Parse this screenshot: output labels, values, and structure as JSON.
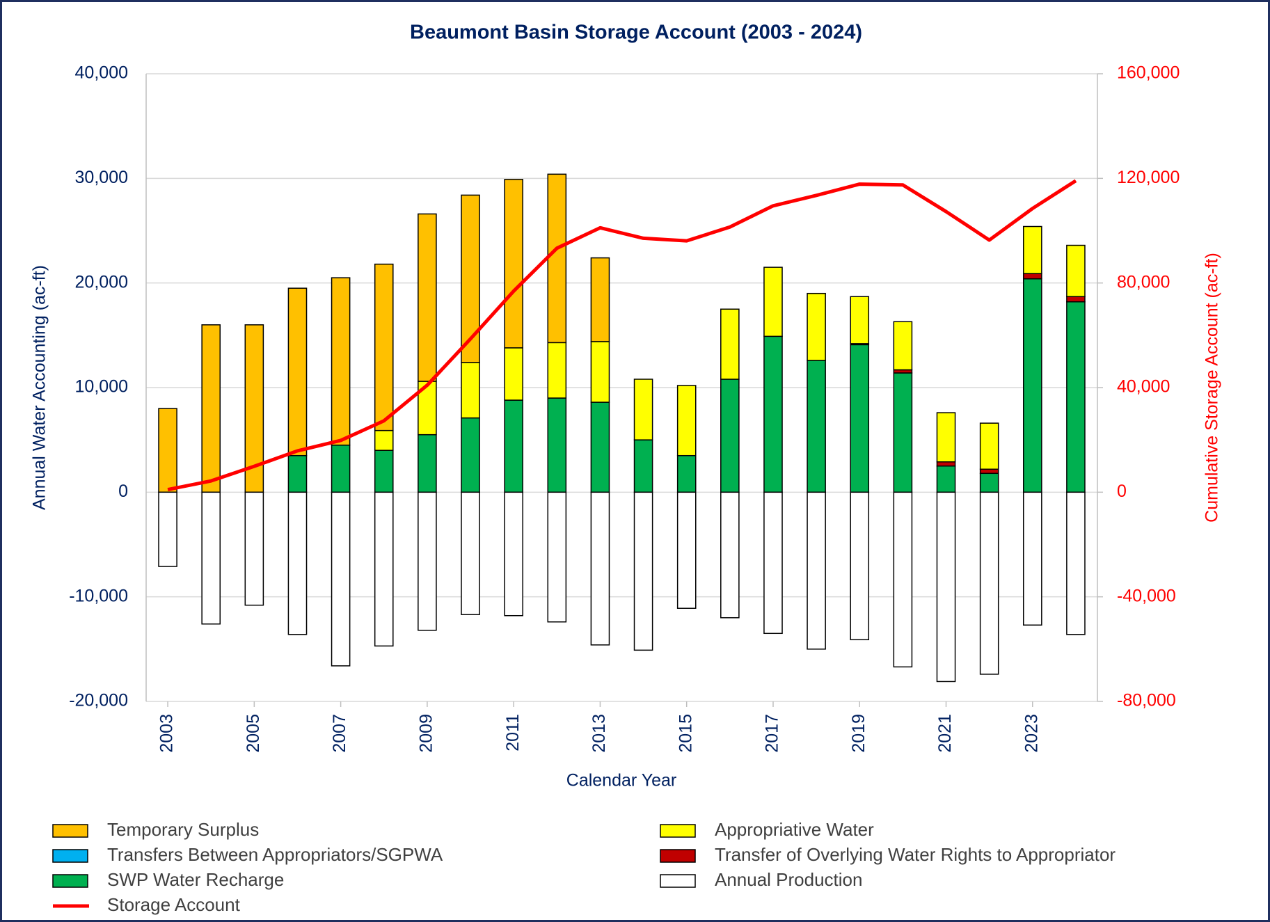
{
  "chart_data": {
    "type": "bar",
    "title": "Beaumont Basin Storage Account (2003  - 2024)",
    "x_label": "Calendar Year",
    "y_label": "Annual Water Accounting (ac-ft)",
    "y2_label": "Cumulative Storage Account (ac-ft)",
    "x": [
      2003,
      2004,
      2005,
      2006,
      2007,
      2008,
      2009,
      2010,
      2011,
      2012,
      2013,
      2014,
      2015,
      2016,
      2017,
      2018,
      2019,
      2020,
      2021,
      2022,
      2023,
      2024
    ],
    "xlim": [
      2002.5,
      2024.5
    ],
    "xticks": [
      2003,
      2005,
      2007,
      2009,
      2011,
      2013,
      2015,
      2017,
      2019,
      2021,
      2023
    ],
    "ylim": [
      -20000,
      40000
    ],
    "yticks": [
      {
        "value": -20000,
        "label": "-20,000"
      },
      {
        "value": -10000,
        "label": "-10,000"
      },
      0,
      {
        "value": 10000,
        "label": "10,000"
      },
      {
        "value": 20000,
        "label": "20,000"
      },
      {
        "value": 30000,
        "label": "30,000"
      },
      {
        "value": 40000,
        "label": "40,000"
      }
    ],
    "y2lim": [
      -80000,
      160000
    ],
    "y2ticks": [
      {
        "value": -80000,
        "label": "-80,000"
      },
      {
        "value": -40000,
        "label": "-40,000"
      },
      0,
      {
        "value": 40000,
        "label": "40,000"
      },
      {
        "value": 80000,
        "label": "80,000"
      },
      {
        "value": 120000,
        "label": "120,000"
      },
      {
        "value": 160000,
        "label": "160,000"
      }
    ],
    "grid": true,
    "stacked": true,
    "series": [
      {
        "name": "Temporary Surplus",
        "color": "#ffc000",
        "values": [
          8000,
          16000,
          16000,
          16000,
          16000,
          15900,
          16000,
          16000,
          16100,
          16100,
          8000,
          0,
          0,
          0,
          0,
          0,
          0,
          0,
          0,
          0,
          0,
          0
        ]
      },
      {
        "name": "Appropriative Water",
        "color": "#ffff00",
        "values": [
          0,
          0,
          0,
          0,
          0,
          1900,
          5100,
          5300,
          5000,
          5300,
          5800,
          5800,
          6700,
          6700,
          6600,
          6400,
          4500,
          4600,
          4700,
          4400,
          4500,
          4900
        ]
      },
      {
        "name": "Transfers Between Appropriators/SGPWA",
        "color": "#00b0f0",
        "values": [
          0,
          0,
          0,
          0,
          0,
          0,
          0,
          0,
          0,
          0,
          0,
          0,
          0,
          0,
          0,
          0,
          0,
          0,
          0,
          0,
          0,
          0
        ]
      },
      {
        "name": "Transfer of Overlying Water Rights to Appropriator",
        "color": "#c00000",
        "values": [
          0,
          0,
          0,
          0,
          0,
          0,
          0,
          0,
          0,
          0,
          0,
          0,
          0,
          0,
          0,
          0,
          100,
          300,
          400,
          400,
          500,
          500
        ]
      },
      {
        "name": "SWP Water Recharge",
        "color": "#00b050",
        "values": [
          0,
          0,
          0,
          3500,
          4500,
          4000,
          5500,
          7100,
          8800,
          9000,
          8600,
          5000,
          3500,
          10800,
          14900,
          12600,
          14100,
          11400,
          2500,
          1800,
          20400,
          18200
        ]
      },
      {
        "name": "Annual Production",
        "color": "#ffffff",
        "values": [
          -7100,
          -12600,
          -10800,
          -13600,
          -16600,
          -14700,
          -13200,
          -11700,
          -11800,
          -12400,
          -14600,
          -15100,
          -11100,
          -12000,
          -13500,
          -15000,
          -14100,
          -16700,
          -18100,
          -17400,
          -12700,
          -13600
        ]
      },
      {
        "name": "Storage Account",
        "color": "#ff0000",
        "type": "line",
        "axis": "y2",
        "values": [
          1000,
          4300,
          9900,
          15800,
          19800,
          27300,
          40900,
          58600,
          76900,
          93300,
          101100,
          97100,
          96100,
          101400,
          109500,
          113500,
          117800,
          117500,
          107300,
          96400,
          108500,
          119100
        ]
      }
    ]
  }
}
